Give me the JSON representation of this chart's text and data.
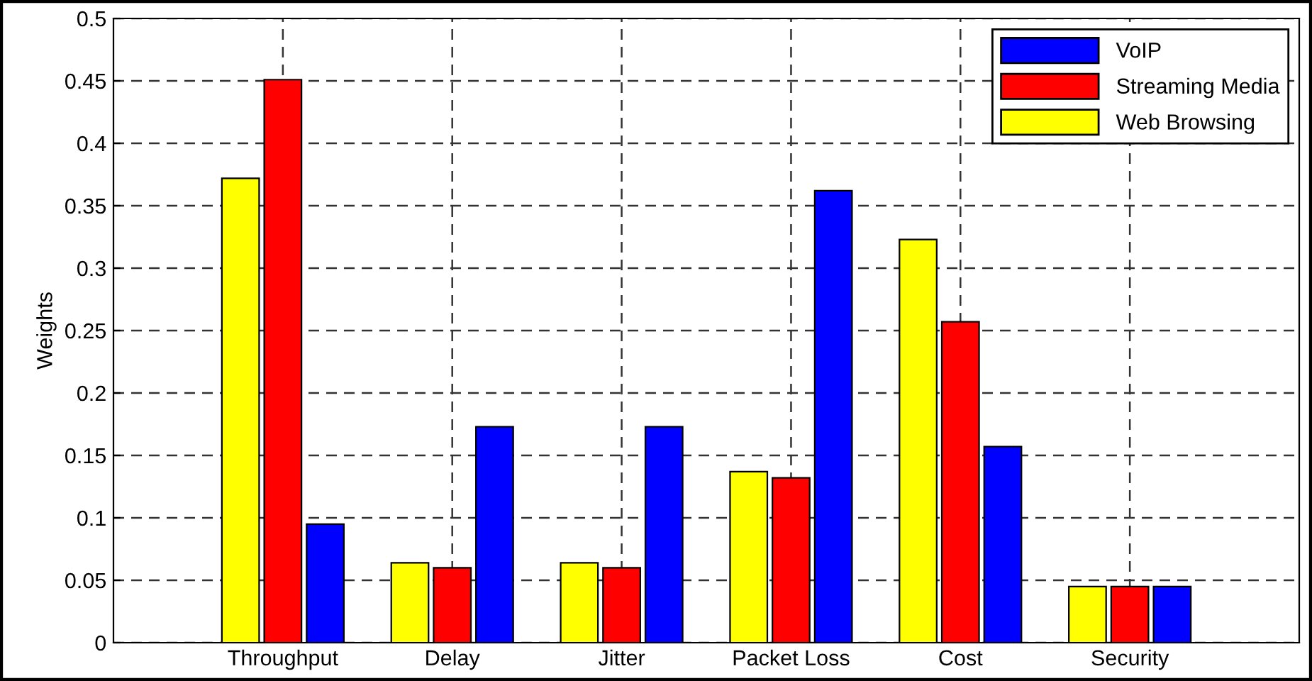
{
  "chart_data": {
    "type": "bar",
    "ylabel": "Weights",
    "categories": [
      "Throughput",
      "Delay",
      "Jitter",
      "Packet Loss",
      "Cost",
      "Security"
    ],
    "series": [
      {
        "name": "Web Browsing",
        "color": "#ffff00",
        "values": [
          0.372,
          0.064,
          0.064,
          0.137,
          0.323,
          0.045
        ]
      },
      {
        "name": "Streaming Media",
        "color": "#ff0000",
        "values": [
          0.451,
          0.06,
          0.06,
          0.132,
          0.257,
          0.045
        ]
      },
      {
        "name": "VoIP",
        "color": "#0000ff",
        "values": [
          0.095,
          0.173,
          0.173,
          0.362,
          0.157,
          0.045
        ]
      }
    ],
    "ylim": [
      0,
      0.5
    ],
    "yticks": [
      0,
      0.05,
      0.1,
      0.15,
      0.2,
      0.25,
      0.3,
      0.35,
      0.4,
      0.45,
      0.5
    ],
    "grid": true,
    "legend": "top right"
  }
}
